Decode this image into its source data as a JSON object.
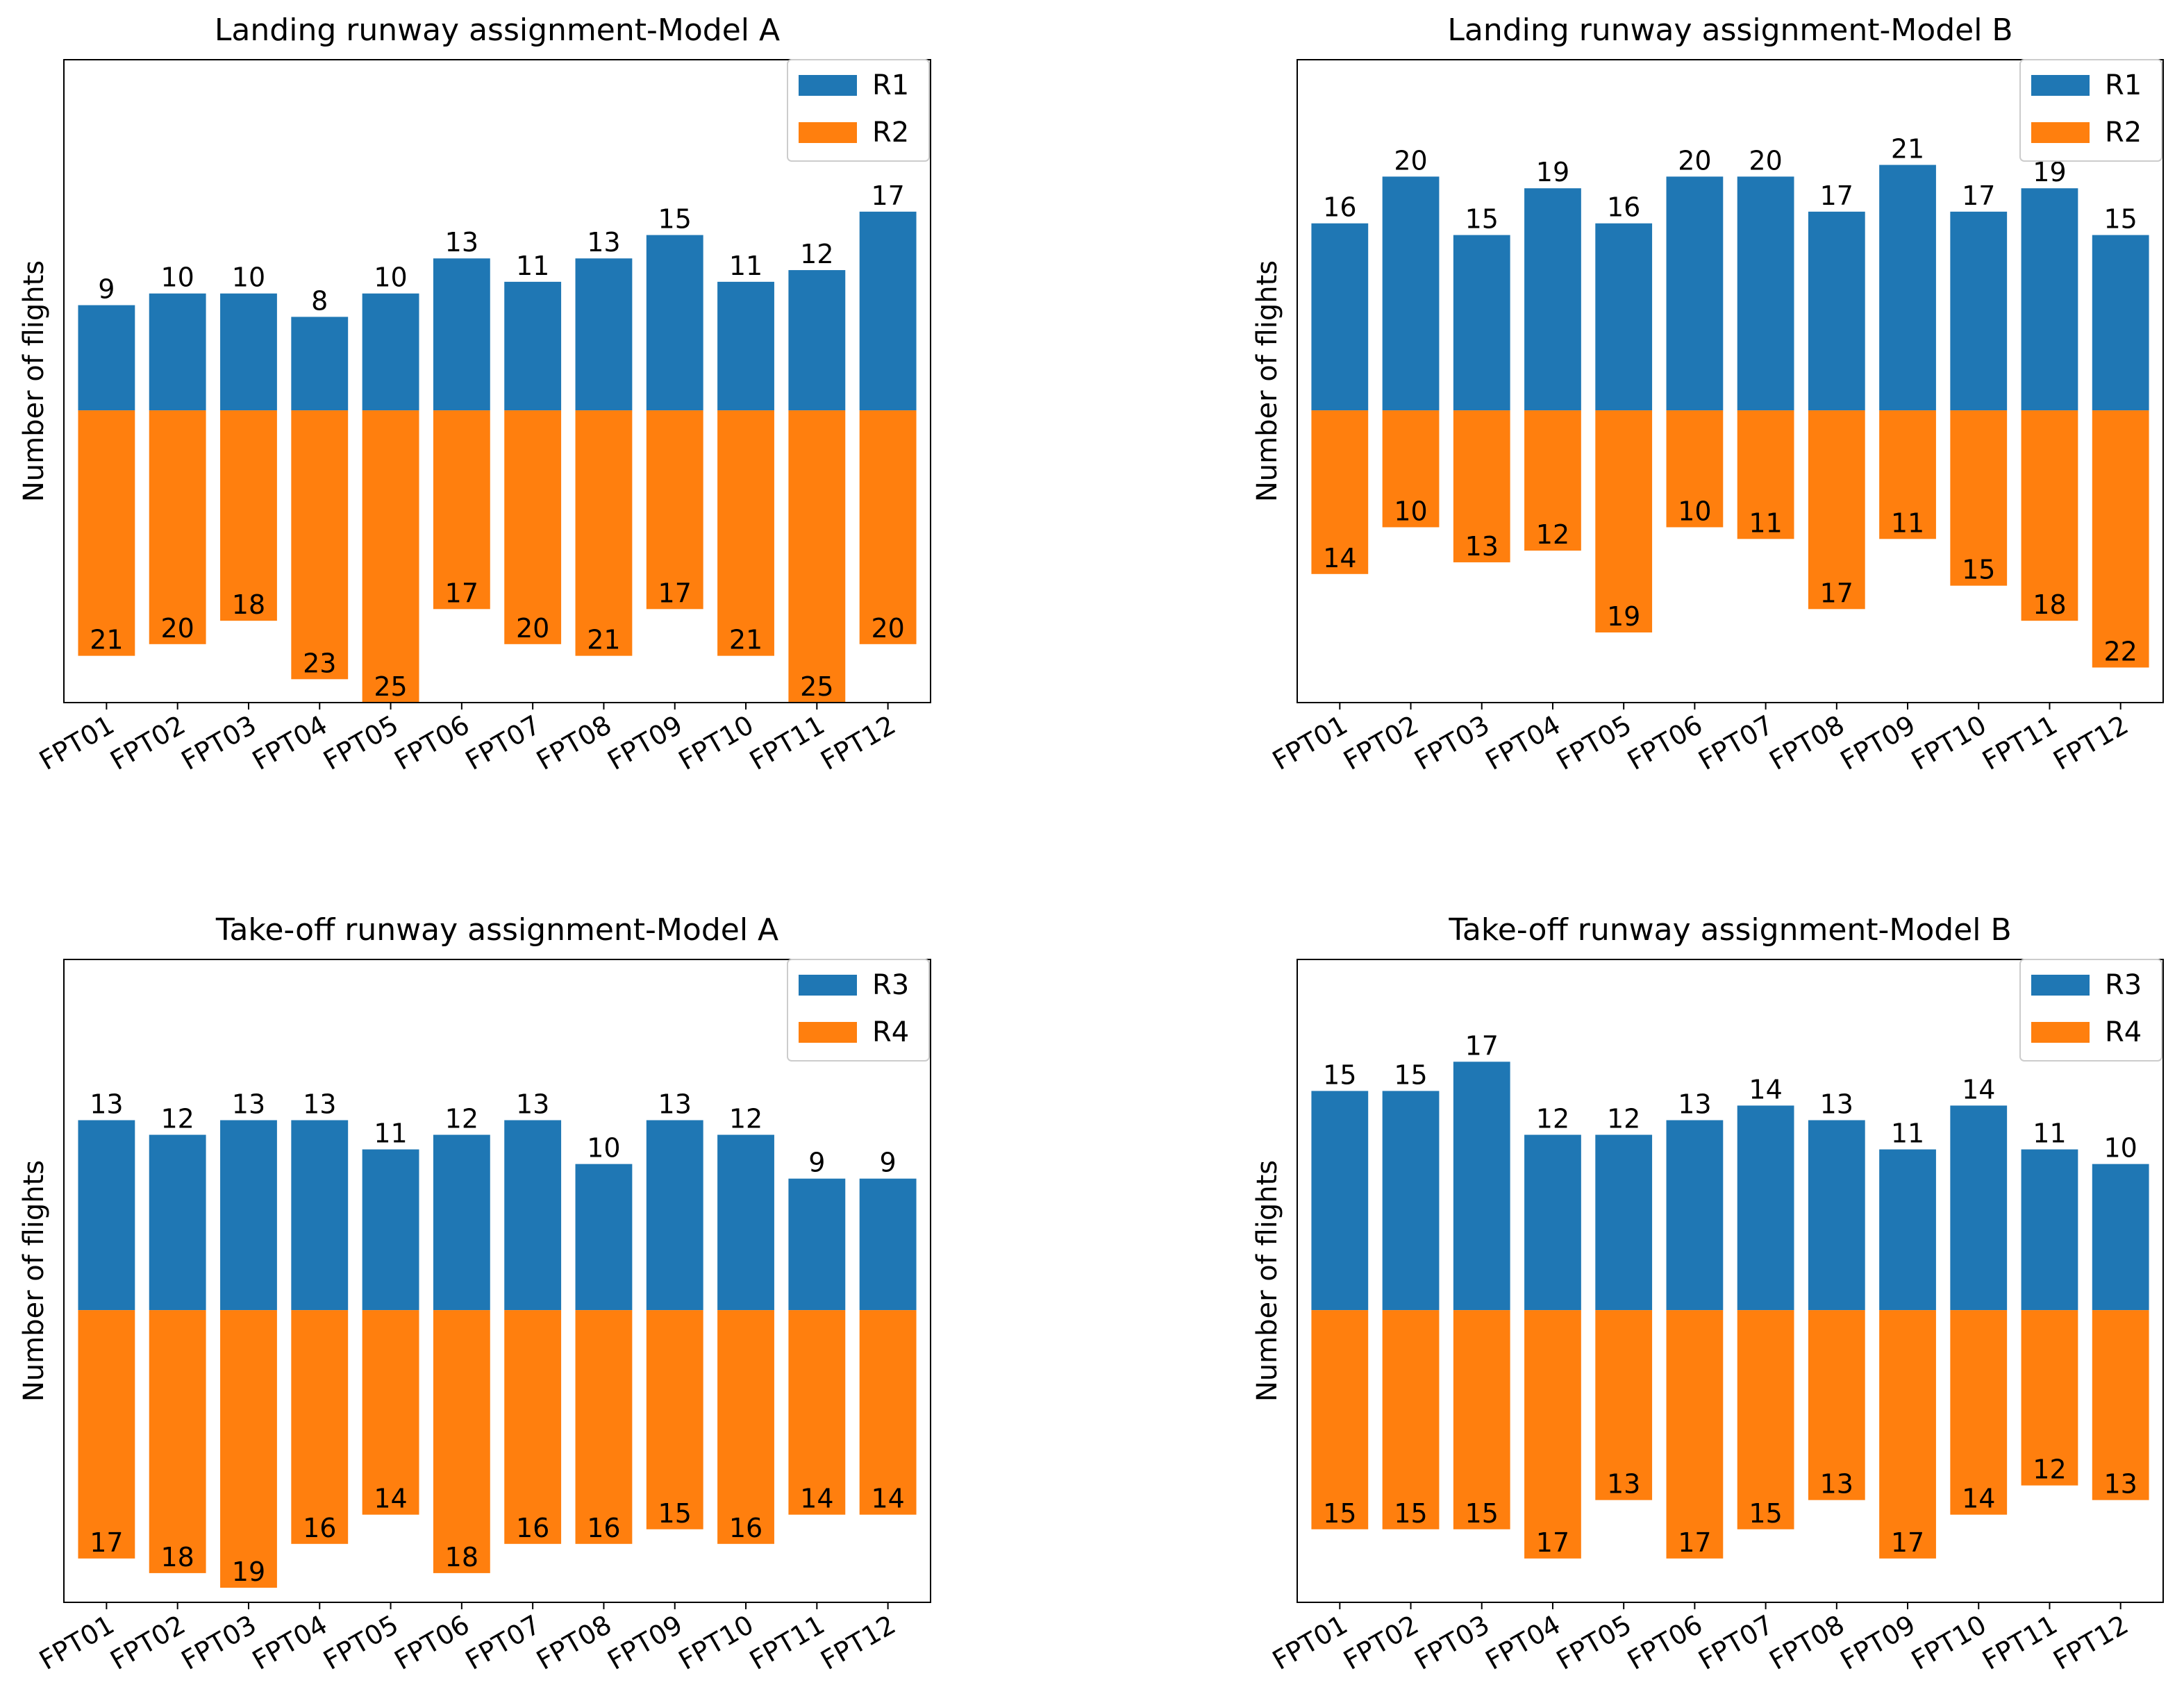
{
  "chart_data": [
    {
      "type": "bar",
      "title": "Landing runway assignment-Model A",
      "ylabel": "Number of flights",
      "xlabel": "",
      "categories": [
        "FPT01",
        "FPT02",
        "FPT03",
        "FPT04",
        "FPT05",
        "FPT06",
        "FPT07",
        "FPT08",
        "FPT09",
        "FPT10",
        "FPT11",
        "FPT12"
      ],
      "series": [
        {
          "name": "R1",
          "values": [
            9,
            10,
            10,
            8,
            10,
            13,
            11,
            13,
            15,
            11,
            12,
            17
          ],
          "color": "#1f77b4",
          "direction": "up"
        },
        {
          "name": "R2",
          "values": [
            21,
            20,
            18,
            23,
            25,
            17,
            20,
            21,
            17,
            21,
            25,
            20
          ],
          "color": "#ff7f0e",
          "direction": "down"
        }
      ],
      "ylim": [
        -25,
        30
      ],
      "legend": "top-right",
      "grid": false
    },
    {
      "type": "bar",
      "title": "Landing runway assignment-Model B",
      "ylabel": "Number of flights",
      "xlabel": "",
      "categories": [
        "FPT01",
        "FPT02",
        "FPT03",
        "FPT04",
        "FPT05",
        "FPT06",
        "FPT07",
        "FPT08",
        "FPT09",
        "FPT10",
        "FPT11",
        "FPT12"
      ],
      "series": [
        {
          "name": "R1",
          "values": [
            16,
            20,
            15,
            19,
            16,
            20,
            20,
            17,
            21,
            17,
            19,
            15
          ],
          "color": "#1f77b4",
          "direction": "up"
        },
        {
          "name": "R2",
          "values": [
            14,
            10,
            13,
            12,
            19,
            10,
            11,
            17,
            11,
            15,
            18,
            22
          ],
          "color": "#ff7f0e",
          "direction": "down"
        }
      ],
      "ylim": [
        -25,
        30
      ],
      "legend": "top-right",
      "grid": false
    },
    {
      "type": "bar",
      "title": "Take-off runway assignment-Model A",
      "ylabel": "Number of flights",
      "xlabel": "",
      "categories": [
        "FPT01",
        "FPT02",
        "FPT03",
        "FPT04",
        "FPT05",
        "FPT06",
        "FPT07",
        "FPT08",
        "FPT09",
        "FPT10",
        "FPT11",
        "FPT12"
      ],
      "series": [
        {
          "name": "R3",
          "values": [
            13,
            12,
            13,
            13,
            11,
            12,
            13,
            10,
            13,
            12,
            9,
            9
          ],
          "color": "#1f77b4",
          "direction": "up"
        },
        {
          "name": "R4",
          "values": [
            17,
            18,
            19,
            16,
            14,
            18,
            16,
            16,
            15,
            16,
            14,
            14
          ],
          "color": "#ff7f0e",
          "direction": "down"
        }
      ],
      "ylim": [
        -20,
        24
      ],
      "legend": "top-right",
      "grid": false
    },
    {
      "type": "bar",
      "title": "Take-off runway assignment-Model B",
      "ylabel": "Number of flights",
      "xlabel": "",
      "categories": [
        "FPT01",
        "FPT02",
        "FPT03",
        "FPT04",
        "FPT05",
        "FPT06",
        "FPT07",
        "FPT08",
        "FPT09",
        "FPT10",
        "FPT11",
        "FPT12"
      ],
      "series": [
        {
          "name": "R3",
          "values": [
            15,
            15,
            17,
            12,
            12,
            13,
            14,
            13,
            11,
            14,
            11,
            10
          ],
          "color": "#1f77b4",
          "direction": "up"
        },
        {
          "name": "R4",
          "values": [
            15,
            15,
            15,
            17,
            13,
            17,
            15,
            13,
            17,
            14,
            12,
            13
          ],
          "color": "#ff7f0e",
          "direction": "down"
        }
      ],
      "ylim": [
        -20,
        24
      ],
      "legend": "top-right",
      "grid": false
    }
  ]
}
